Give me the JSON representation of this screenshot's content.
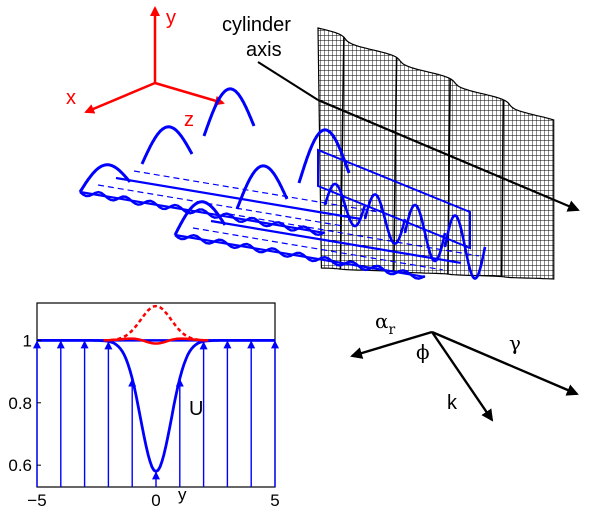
{
  "axes3d": {
    "x": "x",
    "y": "y",
    "z": "z",
    "color": "#ff0000"
  },
  "cylinder": {
    "line1": "cylinder",
    "line2": "axis"
  },
  "vectors": {
    "alpha": "α",
    "alpha_sub": "r",
    "phi": "ϕ",
    "gamma": "γ",
    "k": "k"
  },
  "colors": {
    "wave": "#0000ff",
    "perturbation": "#ff0000",
    "mesh": "#000000"
  },
  "chart_data": {
    "type": "line",
    "xlim": [
      -5,
      5
    ],
    "ylim": [
      0.53,
      1.12
    ],
    "xticks": [
      "−5",
      "0",
      "5"
    ],
    "yticks": [
      "1",
      "0.8",
      "0.6"
    ],
    "ytick_values": [
      1,
      0.8,
      0.6
    ],
    "xtick_values": [
      -5,
      0,
      5
    ],
    "xlabel": "y",
    "series": [
      {
        "name": "U",
        "style": "solid-blue",
        "profile": "1 - 0.42*exp(-(x/0.9)^2)"
      }
    ],
    "arrows_at_x": [
      -5,
      -4,
      -3,
      -2,
      -1,
      0,
      1,
      2,
      3,
      4,
      5
    ],
    "perturbation_solid": "1 + 0.05*exp(-(x/1.0)^2) - 0.06*exp(-(x/0.8)^2)",
    "perturbation_dashed": "1 + 0.11*exp(-(x/0.9)^2)"
  }
}
